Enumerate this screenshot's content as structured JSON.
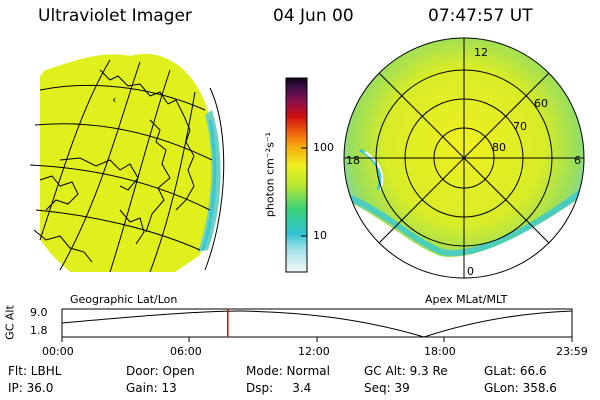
{
  "header": {
    "title": "Ultraviolet Imager",
    "date": "04 Jun 00",
    "time": "07:47:57 UT"
  },
  "left_panel": {
    "label": "Geographic Lat/Lon"
  },
  "right_panel": {
    "label": "Apex MLat/MLT",
    "mlt_labels": [
      "12",
      "18",
      "6",
      "0"
    ],
    "lat_labels": [
      "60",
      "70",
      "80"
    ]
  },
  "colorbar": {
    "unit": "photon cm⁻²s⁻¹",
    "ticks": [
      "100",
      "10"
    ]
  },
  "altitude_plot": {
    "ylabel": "GC Alt",
    "yticks": [
      "9.0",
      "1.8"
    ],
    "xticks": [
      "00:00",
      "06:00",
      "12:00",
      "18:00",
      "23:59"
    ],
    "current_time_hours": 7.8
  },
  "info": [
    [
      "Flt: LBHL",
      "Door: Open",
      "Mode: Normal",
      "GC Alt: 9.3 Re",
      "GLat: 66.6"
    ],
    [
      "IP: 36.0",
      "Gain: 13",
      "Dsp:     3.4",
      "Seq: 39",
      "GLon: 358.6"
    ]
  ],
  "colors": {
    "aurora_fill": "#dff01c",
    "edge_cyan": "#37c8d6",
    "marker": "#dd0000"
  }
}
